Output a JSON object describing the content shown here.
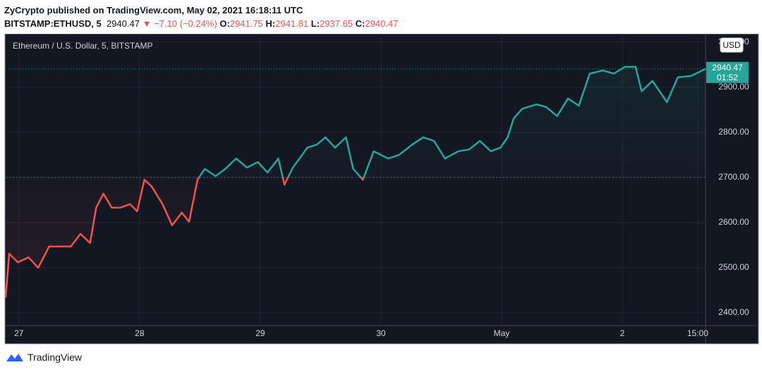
{
  "header": {
    "publisher": "ZyCrypto published on TradingView.com, May 02, 2021 16:18:11 UTC",
    "symbol": "BITSTAMP:ETHUSD, 5",
    "price": "2940.47",
    "arrow": "▼",
    "change": "−7.10 (−0.24%)",
    "o_label": "O:",
    "o": "2941.75",
    "h_label": "H:",
    "h": "2941.81",
    "l_label": "L:",
    "l": "2937.65",
    "c_label": "C:",
    "c": "2940.47"
  },
  "footer": {
    "brand": "TradingView"
  },
  "chart_data": {
    "type": "line",
    "title": "Ethereum / U.S. Dollar, 5, BITSTAMP",
    "currency": "USD",
    "countdown": "01:52",
    "x": [
      26.89,
      26.92,
      26.99,
      27.08,
      27.16,
      27.25,
      27.34,
      27.43,
      27.51,
      27.59,
      27.64,
      27.7,
      27.77,
      27.84,
      27.92,
      27.98,
      28.04,
      28.1,
      28.19,
      28.27,
      28.35,
      28.41,
      28.48,
      28.54,
      28.63,
      28.71,
      28.8,
      28.89,
      28.98,
      29.06,
      29.15,
      29.2,
      29.27,
      29.39,
      29.47,
      29.54,
      29.62,
      29.71,
      29.77,
      29.85,
      29.94,
      30.06,
      30.15,
      30.26,
      30.35,
      30.44,
      30.53,
      30.64,
      30.73,
      30.82,
      30.91,
      30.99,
      31.05,
      31.1,
      31.17,
      31.29,
      31.37,
      31.46,
      31.55,
      31.64,
      31.73,
      31.84,
      31.93,
      32.02,
      32.11,
      32.16,
      32.25,
      32.37,
      32.46,
      32.57,
      32.69
    ],
    "series": [
      {
        "name": "ETHUSD",
        "color": "#26a69a",
        "values": [
          2434,
          2531,
          2512,
          2523,
          2500,
          2547,
          2547,
          2547,
          2575,
          2555,
          2633,
          2664,
          2633,
          2633,
          2641,
          2625,
          2695,
          2680,
          2641,
          2594,
          2622,
          2602,
          2695,
          2719,
          2703,
          2719,
          2742,
          2722,
          2734,
          2711,
          2742,
          2684,
          2722,
          2766,
          2773,
          2789,
          2766,
          2789,
          2719,
          2695,
          2758,
          2742,
          2750,
          2773,
          2789,
          2781,
          2742,
          2758,
          2762,
          2781,
          2758,
          2766,
          2789,
          2831,
          2852,
          2862,
          2856,
          2836,
          2875,
          2859,
          2930,
          2937,
          2930,
          2945,
          2945,
          2891,
          2914,
          2867,
          2922,
          2925,
          2940.47
        ]
      }
    ],
    "baseline": 2700,
    "up_color": "#26a69a",
    "down_color": "#ef5350",
    "xlim": [
      26.89,
      32.69
    ],
    "xticks": [
      27,
      28,
      29,
      30,
      {
        "value": 31,
        "label": "May"
      },
      {
        "value": 32,
        "label": "2"
      },
      {
        "value": 32.625,
        "label": "15:00"
      }
    ],
    "ylim": [
      2372,
      3012
    ],
    "yticks": [
      {
        "value": 2400,
        "label": "2400.00"
      },
      {
        "value": 2500,
        "label": "2500.00"
      },
      {
        "value": 2600,
        "label": "2600.00"
      },
      {
        "value": 2700,
        "label": "2700.00"
      },
      {
        "value": 2800,
        "label": "2800.00"
      },
      {
        "value": 2900,
        "label": "2900.00"
      },
      {
        "value": 3000,
        "label": "3000.00"
      }
    ],
    "grid": true
  }
}
